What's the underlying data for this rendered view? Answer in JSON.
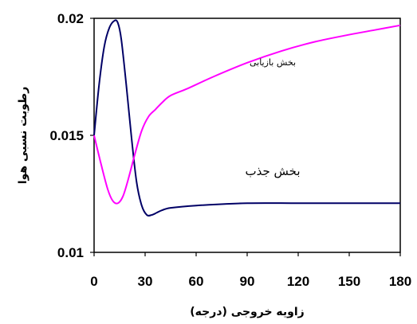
{
  "chart_data": {
    "type": "line",
    "xlabel": "زاویه خروجی (درجه)",
    "ylabel": "رطوبت نسبی هوا",
    "xlim": [
      0,
      180
    ],
    "ylim": [
      0.01,
      0.02
    ],
    "x_ticks": [
      "0",
      "30",
      "60",
      "90",
      "120",
      "150",
      "180"
    ],
    "y_ticks": [
      "0.01",
      "0.015",
      "0.02"
    ],
    "grid": false,
    "series": [
      {
        "color": "#000066",
        "x": [
          0,
          3,
          6,
          9,
          12,
          14,
          16,
          19,
          22,
          25,
          28,
          31,
          34,
          37,
          40,
          45,
          60,
          90,
          120,
          150,
          180
        ],
        "y": [
          0.015,
          0.0172,
          0.0188,
          0.0196,
          0.0199,
          0.0198,
          0.0191,
          0.0171,
          0.0149,
          0.013,
          0.012,
          0.0116,
          0.0116,
          0.0117,
          0.0118,
          0.0119,
          0.012,
          0.0121,
          0.0121,
          0.0121,
          0.0121
        ]
      },
      {
        "color": "#ff00ff",
        "x": [
          0,
          4,
          8,
          11,
          14,
          17,
          20,
          24,
          28,
          32,
          36,
          40,
          45,
          55,
          70,
          90,
          110,
          130,
          150,
          165,
          180
        ],
        "y": [
          0.015,
          0.0138,
          0.0127,
          0.0122,
          0.0121,
          0.0124,
          0.0131,
          0.0142,
          0.0152,
          0.0158,
          0.0161,
          0.0164,
          0.0167,
          0.017,
          0.0175,
          0.0181,
          0.0186,
          0.019,
          0.0193,
          0.0195,
          0.0197
        ]
      }
    ],
    "annotations": [
      {
        "text": "بخش بازیابی",
        "x": 105,
        "y": 0.018,
        "size": "small"
      },
      {
        "text": "بخش جذب",
        "x": 105,
        "y": 0.0133,
        "size": "large"
      }
    ]
  }
}
